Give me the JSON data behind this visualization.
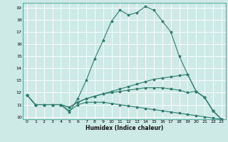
{
  "title": "",
  "xlabel": "Humidex (Indice chaleur)",
  "background_color": "#ceeae7",
  "grid_color": "#ffffff",
  "line_color": "#2e7d6e",
  "lines": [
    {
      "x": [
        0,
        1,
        2,
        3,
        4,
        5,
        6,
        7,
        8,
        9,
        10,
        11,
        12,
        13,
        14,
        15,
        16,
        17,
        18,
        19,
        20,
        21,
        22,
        23
      ],
      "y": [
        11.8,
        11.0,
        11.0,
        11.0,
        11.0,
        10.4,
        11.5,
        13.0,
        14.8,
        16.3,
        17.9,
        18.8,
        18.4,
        18.6,
        19.1,
        18.8,
        17.9,
        17.0,
        15.0,
        13.5,
        12.1,
        11.6,
        10.5,
        9.8
      ]
    },
    {
      "x": [
        0,
        1,
        2,
        3,
        4,
        5,
        6,
        7,
        8,
        9,
        10,
        11,
        12,
        13,
        14,
        15,
        16,
        17,
        18,
        19,
        20,
        21,
        22,
        23
      ],
      "y": [
        11.8,
        11.0,
        11.0,
        11.0,
        11.0,
        10.8,
        11.2,
        11.5,
        11.7,
        11.9,
        12.1,
        12.3,
        12.5,
        12.7,
        12.9,
        13.1,
        13.2,
        13.3,
        13.4,
        13.5,
        12.1,
        11.6,
        10.5,
        9.8
      ]
    },
    {
      "x": [
        0,
        1,
        2,
        3,
        4,
        5,
        6,
        7,
        8,
        9,
        10,
        11,
        12,
        13,
        14,
        15,
        16,
        17,
        18,
        19,
        20,
        21,
        22,
        23
      ],
      "y": [
        11.8,
        11.0,
        11.0,
        11.0,
        11.0,
        10.8,
        11.2,
        11.5,
        11.7,
        11.9,
        12.0,
        12.1,
        12.2,
        12.3,
        12.4,
        12.4,
        12.4,
        12.3,
        12.2,
        12.0,
        12.1,
        11.6,
        10.5,
        9.8
      ]
    },
    {
      "x": [
        0,
        1,
        2,
        3,
        4,
        5,
        6,
        7,
        8,
        9,
        10,
        11,
        12,
        13,
        14,
        15,
        16,
        17,
        18,
        19,
        20,
        21,
        22,
        23
      ],
      "y": [
        11.8,
        11.0,
        11.0,
        11.0,
        11.0,
        10.5,
        11.0,
        11.2,
        11.2,
        11.2,
        11.1,
        11.0,
        10.9,
        10.8,
        10.7,
        10.6,
        10.5,
        10.4,
        10.3,
        10.2,
        10.1,
        10.0,
        9.9,
        9.8
      ]
    }
  ],
  "xlim": [
    -0.5,
    23.5
  ],
  "ylim": [
    9.8,
    19.4
  ],
  "yticks": [
    10,
    11,
    12,
    13,
    14,
    15,
    16,
    17,
    18,
    19
  ],
  "xticks": [
    0,
    1,
    2,
    3,
    4,
    5,
    6,
    7,
    8,
    9,
    10,
    11,
    12,
    13,
    14,
    15,
    16,
    17,
    18,
    19,
    20,
    21,
    22,
    23
  ]
}
